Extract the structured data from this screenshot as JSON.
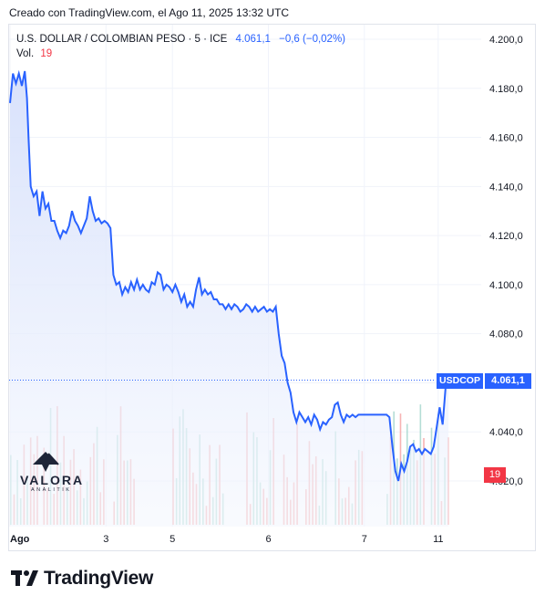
{
  "caption": "Creado con TradingView.com, el Ago 11, 2025 13:32 UTC",
  "legend": {
    "symbol": "U.S. DOLLAR / COLOMBIAN PESO · 5 · ICE",
    "last": "4.061,1",
    "change": "−0,6 (−0,02%)",
    "vol_label": "Vol.",
    "vol_value": "19"
  },
  "tags": {
    "symbol": "USDCOP",
    "price": "4.061,1",
    "volume": "19"
  },
  "watermark": {
    "name": "VALORA",
    "sub": "ANALITIK"
  },
  "footer": {
    "brand": "TradingView"
  },
  "colors": {
    "line": "#2962ff",
    "area_top": "#dbe4fb",
    "area_bottom": "#f6f8fe",
    "vol_up": "#a8d8cf",
    "vol_down": "#f6a6a6"
  },
  "chart_data": {
    "type": "area",
    "symbol": "USDCOP",
    "y_tick_labels": [
      "4.020,0",
      "4.040,0",
      "4.060,0",
      "4.080,0",
      "4.100,0",
      "4.120,0",
      "4.140,0",
      "4.160,0",
      "4.180,0",
      "4.200,0"
    ],
    "y_ticks": [
      4020,
      4040,
      4060,
      4080,
      4100,
      4120,
      4140,
      4160,
      4180,
      4200
    ],
    "ylim": [
      4015,
      4203
    ],
    "x_tick_labels": [
      "Ago",
      "3",
      "5",
      "6",
      "7",
      "11"
    ],
    "x_ticks": [
      0,
      13,
      22,
      35,
      48,
      58
    ],
    "xlim": [
      0,
      70
    ],
    "last_value": 4061.1,
    "series": [
      {
        "name": "USDCOP",
        "points": [
          [
            0,
            4174
          ],
          [
            0.4,
            4186
          ],
          [
            0.8,
            4182
          ],
          [
            1.2,
            4186
          ],
          [
            1.6,
            4181
          ],
          [
            2.0,
            4187
          ],
          [
            2.3,
            4176
          ],
          [
            2.5,
            4160
          ],
          [
            2.8,
            4140
          ],
          [
            3.2,
            4136
          ],
          [
            3.6,
            4138
          ],
          [
            4.0,
            4128
          ],
          [
            4.4,
            4138
          ],
          [
            4.8,
            4131
          ],
          [
            5.2,
            4133
          ],
          [
            5.6,
            4126
          ],
          [
            6.0,
            4126
          ],
          [
            6.4,
            4122
          ],
          [
            6.8,
            4119
          ],
          [
            7.2,
            4122
          ],
          [
            7.6,
            4121
          ],
          [
            8.0,
            4124
          ],
          [
            8.4,
            4130
          ],
          [
            8.8,
            4126
          ],
          [
            9.2,
            4124
          ],
          [
            9.6,
            4121
          ],
          [
            10.0,
            4124
          ],
          [
            10.4,
            4127
          ],
          [
            10.8,
            4136
          ],
          [
            11.2,
            4130
          ],
          [
            11.6,
            4126
          ],
          [
            12.0,
            4127
          ],
          [
            12.4,
            4125
          ],
          [
            12.8,
            4126
          ],
          [
            13.2,
            4125
          ],
          [
            13.6,
            4123
          ],
          [
            14.0,
            4104
          ],
          [
            14.4,
            4100
          ],
          [
            14.8,
            4101
          ],
          [
            15.2,
            4096
          ],
          [
            15.6,
            4099
          ],
          [
            16.0,
            4097
          ],
          [
            16.4,
            4101
          ],
          [
            16.8,
            4098
          ],
          [
            17.2,
            4102
          ],
          [
            17.6,
            4098
          ],
          [
            18.0,
            4100
          ],
          [
            18.4,
            4098
          ],
          [
            18.8,
            4097
          ],
          [
            19.2,
            4101
          ],
          [
            19.6,
            4100
          ],
          [
            20.0,
            4105
          ],
          [
            20.4,
            4104
          ],
          [
            20.8,
            4098
          ],
          [
            21.2,
            4100
          ],
          [
            21.6,
            4099
          ],
          [
            22.0,
            4097
          ],
          [
            22.4,
            4100
          ],
          [
            22.8,
            4097
          ],
          [
            23.2,
            4093
          ],
          [
            23.6,
            4096
          ],
          [
            24.0,
            4091
          ],
          [
            24.4,
            4093
          ],
          [
            24.8,
            4091
          ],
          [
            25.2,
            4098
          ],
          [
            25.6,
            4103
          ],
          [
            26.0,
            4096
          ],
          [
            26.4,
            4098
          ],
          [
            26.8,
            4096
          ],
          [
            27.2,
            4097
          ],
          [
            27.6,
            4094
          ],
          [
            28.0,
            4094
          ],
          [
            28.4,
            4092
          ],
          [
            28.8,
            4092
          ],
          [
            29.2,
            4090
          ],
          [
            29.6,
            4092
          ],
          [
            30.0,
            4090
          ],
          [
            30.4,
            4092
          ],
          [
            30.8,
            4091
          ],
          [
            31.2,
            4089
          ],
          [
            31.6,
            4090
          ],
          [
            32.0,
            4092
          ],
          [
            32.4,
            4091
          ],
          [
            32.8,
            4089
          ],
          [
            33.2,
            4091
          ],
          [
            33.6,
            4089
          ],
          [
            34.0,
            4090
          ],
          [
            34.4,
            4091
          ],
          [
            34.8,
            4089
          ],
          [
            35.2,
            4090
          ],
          [
            35.6,
            4089
          ],
          [
            36.0,
            4091
          ],
          [
            36.4,
            4080
          ],
          [
            36.8,
            4071
          ],
          [
            37.2,
            4068
          ],
          [
            37.6,
            4060
          ],
          [
            38.0,
            4056
          ],
          [
            38.4,
            4048
          ],
          [
            38.8,
            4044
          ],
          [
            39.2,
            4048
          ],
          [
            39.6,
            4046
          ],
          [
            40.0,
            4044
          ],
          [
            40.4,
            4046
          ],
          [
            40.8,
            4043
          ],
          [
            41.2,
            4047
          ],
          [
            41.6,
            4045
          ],
          [
            42.0,
            4041
          ],
          [
            42.4,
            4044
          ],
          [
            42.8,
            4043
          ],
          [
            43.2,
            4045
          ],
          [
            43.6,
            4046
          ],
          [
            44.0,
            4051
          ],
          [
            44.4,
            4052
          ],
          [
            44.8,
            4047
          ],
          [
            45.2,
            4044
          ],
          [
            45.6,
            4047
          ],
          [
            46.0,
            4046
          ],
          [
            46.4,
            4047
          ],
          [
            46.8,
            4046
          ],
          [
            47.2,
            4047
          ],
          [
            48.0,
            4047
          ],
          [
            49.0,
            4047
          ],
          [
            50.0,
            4047
          ],
          [
            51.0,
            4047
          ],
          [
            51.4,
            4046
          ],
          [
            51.8,
            4034
          ],
          [
            52.2,
            4024
          ],
          [
            52.6,
            4020
          ],
          [
            53.0,
            4027
          ],
          [
            53.4,
            4024
          ],
          [
            53.8,
            4028
          ],
          [
            54.2,
            4034
          ],
          [
            54.6,
            4035
          ],
          [
            55.0,
            4032
          ],
          [
            55.4,
            4033
          ],
          [
            55.8,
            4031
          ],
          [
            56.2,
            4033
          ],
          [
            56.6,
            4032
          ],
          [
            57.0,
            4031
          ],
          [
            57.4,
            4034
          ],
          [
            57.8,
            4042
          ],
          [
            58.2,
            4050
          ],
          [
            58.6,
            4043
          ],
          [
            59.0,
            4058
          ],
          [
            59.2,
            4062
          ],
          [
            59.4,
            4061
          ]
        ]
      },
      {
        "name": "Vol.",
        "last": 19
      }
    ]
  }
}
